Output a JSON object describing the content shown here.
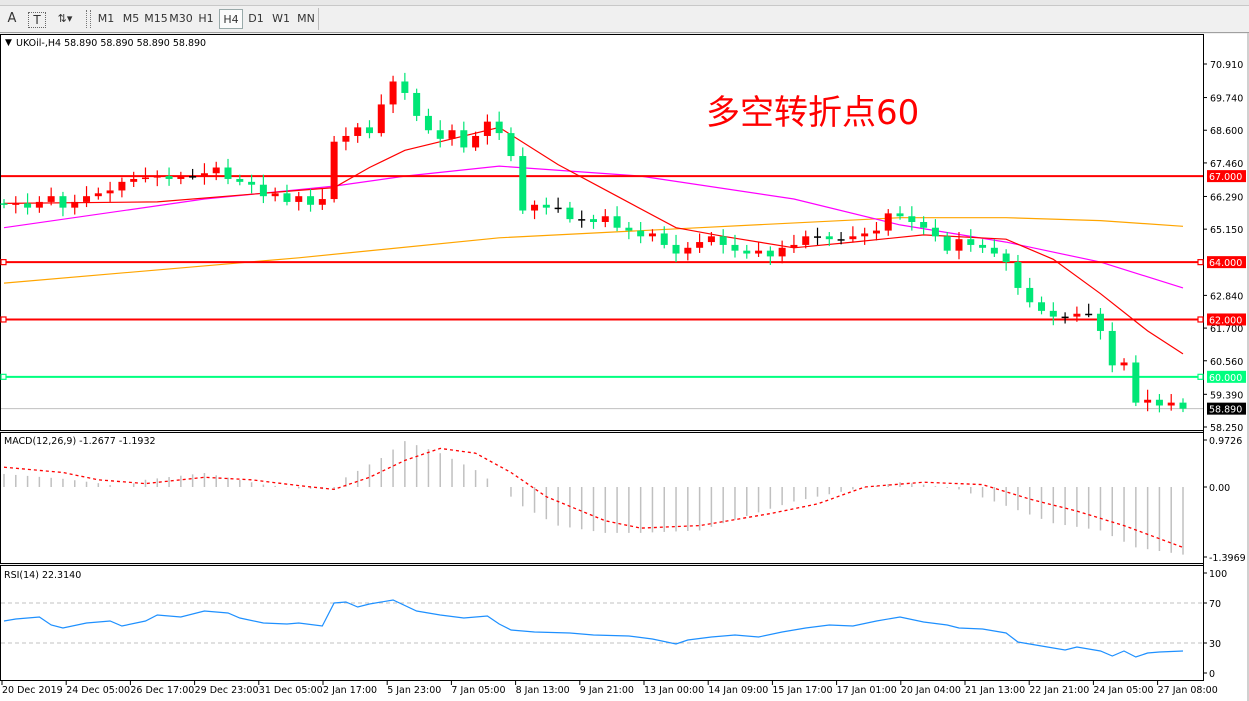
{
  "toolbar": {
    "tools": [
      {
        "name": "text-tool",
        "label": "A"
      },
      {
        "name": "text-label-tool",
        "label": "T"
      },
      {
        "name": "arrows-tool",
        "label": "⇅▾"
      }
    ],
    "timeframes": [
      "M1",
      "M5",
      "M15",
      "M30",
      "H1",
      "H4",
      "D1",
      "W1",
      "MN"
    ],
    "active_timeframe": "H4"
  },
  "chart_data": {
    "type": "candlestick",
    "title": "UKOil-,H4  58.890 58.890 58.890 58.890",
    "symbol": "UKOil-",
    "timeframe": "H4",
    "annotation": "多空转折点60",
    "colors": {
      "up": "#ff0000",
      "down": "#00e676",
      "ma_fast": "#ff0000",
      "ma_mid": "#ff00ff",
      "ma_slow": "#ffa500",
      "hline": "#ff0000",
      "hline_green": "#00ff7f",
      "macd_hist": "#c0c0c0",
      "macd_signal": "#ff0000",
      "rsi": "#1e90ff"
    },
    "ylim": [
      58.25,
      70.91
    ],
    "y_ticks": [
      "70.910",
      "69.740",
      "68.600",
      "67.460",
      "66.290",
      "65.150",
      "62.840",
      "61.700",
      "60.560",
      "59.390",
      "58.250"
    ],
    "x_ticks": [
      "20 Dec 2019",
      "24 Dec 05:00",
      "26 Dec 17:00",
      "29 Dec 23:00",
      "31 Dec 05:00",
      "2 Jan 17:00",
      "5 Jan 23:00",
      "7 Jan 05:00",
      "8 Jan 13:00",
      "9 Jan 21:00",
      "13 Jan 00:00",
      "14 Jan 09:00",
      "15 Jan 17:00",
      "17 Jan 01:00",
      "20 Jan 04:00",
      "21 Jan 13:00",
      "22 Jan 21:00",
      "24 Jan 05:00",
      "27 Jan 08:00"
    ],
    "closes": [
      66.0,
      66.05,
      65.9,
      66.1,
      66.3,
      65.9,
      66.1,
      66.3,
      66.4,
      66.5,
      66.8,
      66.9,
      66.95,
      67.0,
      66.9,
      67.0,
      67.0,
      67.1,
      67.3,
      66.9,
      66.8,
      66.7,
      66.3,
      66.4,
      66.1,
      66.3,
      66.0,
      66.2,
      68.2,
      68.4,
      68.7,
      68.5,
      69.5,
      70.3,
      69.9,
      69.1,
      68.6,
      68.3,
      68.6,
      68.0,
      68.4,
      68.9,
      68.5,
      67.7,
      65.8,
      66.0,
      65.9,
      65.9,
      65.5,
      65.5,
      65.4,
      65.6,
      65.2,
      65.1,
      64.9,
      65.0,
      64.6,
      64.3,
      64.5,
      64.7,
      64.9,
      64.6,
      64.4,
      64.3,
      64.4,
      64.2,
      64.5,
      64.6,
      64.9,
      64.9,
      64.8,
      64.8,
      64.9,
      65.0,
      65.1,
      65.7,
      65.6,
      65.4,
      65.2,
      64.9,
      64.4,
      64.8,
      64.6,
      64.5,
      64.3,
      64.0,
      63.1,
      62.6,
      62.3,
      62.1,
      62.1,
      62.2,
      62.2,
      61.6,
      60.4,
      60.5,
      59.1,
      59.2,
      59.0,
      59.1,
      58.89
    ],
    "moving_averages": [
      {
        "color_key": "ma_slow",
        "points": [
          [
            0,
            63.27
          ],
          [
            25,
            64.15
          ],
          [
            42,
            64.85
          ],
          [
            59,
            65.2
          ],
          [
            76,
            65.55
          ],
          [
            85,
            65.55
          ],
          [
            93,
            65.45
          ],
          [
            100,
            65.25
          ]
        ]
      },
      {
        "color_key": "ma_mid",
        "points": [
          [
            0,
            65.2
          ],
          [
            17,
            66.2
          ],
          [
            28,
            66.65
          ],
          [
            34,
            67.0
          ],
          [
            42,
            67.35
          ],
          [
            54,
            67.0
          ],
          [
            67,
            66.2
          ],
          [
            76,
            65.3
          ],
          [
            85,
            64.7
          ],
          [
            93,
            64.0
          ],
          [
            100,
            63.1
          ]
        ]
      },
      {
        "color_key": "ma_fast",
        "points": [
          [
            0,
            66.05
          ],
          [
            13,
            66.1
          ],
          [
            25,
            66.5
          ],
          [
            28,
            66.6
          ],
          [
            31,
            67.3
          ],
          [
            34,
            67.9
          ],
          [
            42,
            68.7
          ],
          [
            47,
            67.4
          ],
          [
            52,
            66.3
          ],
          [
            57,
            65.2
          ],
          [
            61,
            64.9
          ],
          [
            67,
            64.5
          ],
          [
            72,
            64.7
          ],
          [
            78,
            64.95
          ],
          [
            85,
            64.8
          ],
          [
            89,
            64.1
          ],
          [
            93,
            62.9
          ],
          [
            97,
            61.6
          ],
          [
            100,
            60.8
          ]
        ]
      }
    ],
    "horizontal_levels": [
      {
        "price": "67.000",
        "color_key": "hline"
      },
      {
        "price": "64.000",
        "color_key": "hline"
      },
      {
        "price": "62.000",
        "color_key": "hline"
      },
      {
        "price": "60.000",
        "color_key": "hline_green"
      }
    ],
    "current_price": "58.890",
    "macd": {
      "label": "MACD(12,26,9) -1.2677 -1.1932",
      "ticks": [
        "0.9726",
        "0.00",
        "-1.3969"
      ],
      "ylim": [
        -1.3969,
        0.9726
      ],
      "histogram": [
        [
          0,
          0.27
        ],
        [
          5,
          0.17
        ],
        [
          8,
          0.08
        ],
        [
          10,
          0.0
        ],
        [
          12,
          0.15
        ],
        [
          17,
          0.29
        ],
        [
          22,
          0.05
        ],
        [
          25,
          -0.03
        ],
        [
          28,
          -0.05
        ],
        [
          29,
          0.2
        ],
        [
          32,
          0.6
        ],
        [
          34,
          0.95
        ],
        [
          37,
          0.7
        ],
        [
          40,
          0.35
        ],
        [
          42,
          0.0
        ],
        [
          44,
          -0.4
        ],
        [
          47,
          -0.8
        ],
        [
          51,
          -0.95
        ],
        [
          54,
          -0.95
        ],
        [
          59,
          -0.9
        ],
        [
          63,
          -0.6
        ],
        [
          67,
          -0.3
        ],
        [
          72,
          -0.05
        ],
        [
          76,
          0.1
        ],
        [
          78,
          0.05
        ],
        [
          81,
          -0.05
        ],
        [
          84,
          -0.3
        ],
        [
          89,
          -0.75
        ],
        [
          93,
          -0.9
        ],
        [
          96,
          -1.25
        ],
        [
          100,
          -1.4
        ]
      ],
      "signal": [
        [
          0,
          0.41
        ],
        [
          5,
          0.3
        ],
        [
          8,
          0.15
        ],
        [
          12,
          0.07
        ],
        [
          17,
          0.2
        ],
        [
          21,
          0.15
        ],
        [
          25,
          0.03
        ],
        [
          28,
          -0.05
        ],
        [
          31,
          0.2
        ],
        [
          34,
          0.55
        ],
        [
          37,
          0.8
        ],
        [
          40,
          0.7
        ],
        [
          43,
          0.3
        ],
        [
          46,
          -0.2
        ],
        [
          51,
          -0.7
        ],
        [
          54,
          -0.85
        ],
        [
          59,
          -0.8
        ],
        [
          65,
          -0.55
        ],
        [
          69,
          -0.35
        ],
        [
          73,
          0.0
        ],
        [
          78,
          0.1
        ],
        [
          83,
          0.05
        ],
        [
          87,
          -0.25
        ],
        [
          91,
          -0.5
        ],
        [
          95,
          -0.8
        ],
        [
          100,
          -1.25
        ]
      ]
    },
    "rsi": {
      "label": "RSI(14) 22.3140",
      "ticks": [
        "100",
        "70",
        "30",
        "0"
      ],
      "levels": [
        70,
        30
      ],
      "ylim": [
        0,
        100
      ],
      "values": [
        [
          0,
          52
        ],
        [
          1,
          54
        ],
        [
          3,
          56
        ],
        [
          4,
          48
        ],
        [
          5,
          45
        ],
        [
          7,
          50
        ],
        [
          9,
          52
        ],
        [
          10,
          47
        ],
        [
          12,
          52
        ],
        [
          13,
          58
        ],
        [
          15,
          56
        ],
        [
          17,
          62
        ],
        [
          19,
          60
        ],
        [
          20,
          55
        ],
        [
          22,
          50
        ],
        [
          24,
          49
        ],
        [
          25,
          50
        ],
        [
          27,
          47
        ],
        [
          28,
          70
        ],
        [
          29,
          71
        ],
        [
          30,
          66
        ],
        [
          31,
          69
        ],
        [
          33,
          73
        ],
        [
          35,
          62
        ],
        [
          37,
          58
        ],
        [
          39,
          55
        ],
        [
          41,
          57
        ],
        [
          42,
          49
        ],
        [
          43,
          43
        ],
        [
          45,
          41
        ],
        [
          48,
          40
        ],
        [
          50,
          38
        ],
        [
          53,
          37
        ],
        [
          55,
          34
        ],
        [
          57,
          29
        ],
        [
          58,
          33
        ],
        [
          60,
          36
        ],
        [
          62,
          38
        ],
        [
          64,
          36
        ],
        [
          66,
          41
        ],
        [
          68,
          45
        ],
        [
          70,
          48
        ],
        [
          72,
          47
        ],
        [
          74,
          52
        ],
        [
          76,
          56
        ],
        [
          78,
          51
        ],
        [
          80,
          48
        ],
        [
          81,
          45
        ],
        [
          83,
          44
        ],
        [
          85,
          40
        ],
        [
          86,
          31
        ],
        [
          88,
          27
        ],
        [
          90,
          23
        ],
        [
          91,
          26
        ],
        [
          93,
          22
        ],
        [
          94,
          17
        ],
        [
          95,
          22
        ],
        [
          96,
          16
        ],
        [
          97,
          20
        ],
        [
          98,
          21
        ],
        [
          100,
          22
        ]
      ]
    }
  }
}
